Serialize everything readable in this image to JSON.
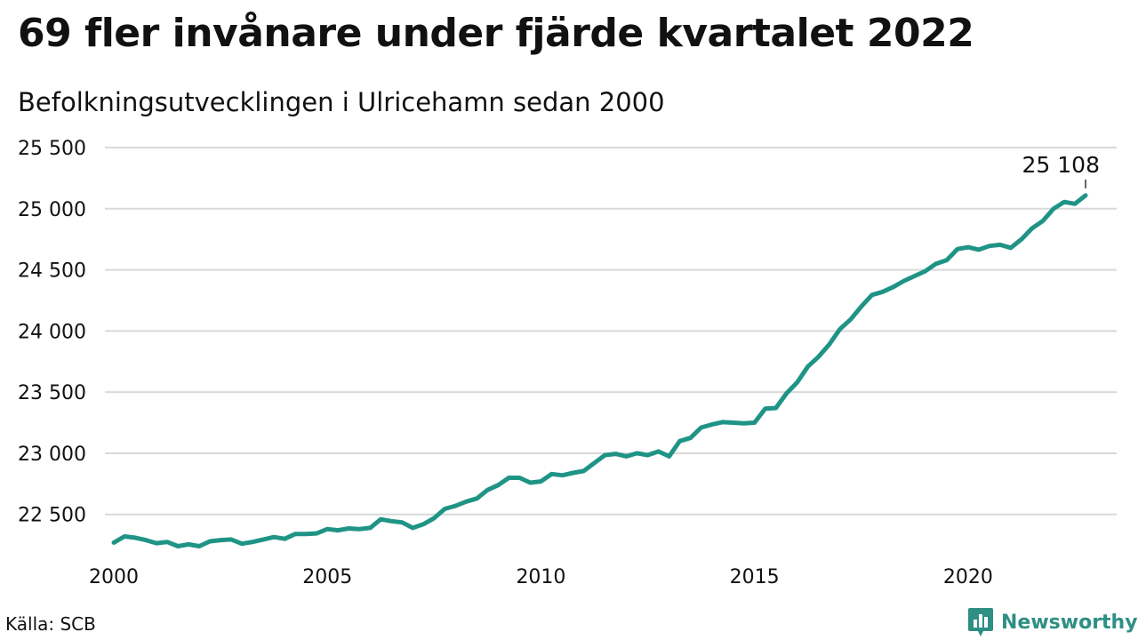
{
  "header": {
    "title": "69 fler invånare under fjärde kvartalet 2022",
    "subtitle": "Befolkningsutvecklingen i Ulricehamn sedan 2000"
  },
  "footer": {
    "source": "Källa: SCB",
    "brand": "Newsworthy",
    "brand_icon": "bar-chart-icon"
  },
  "colors": {
    "line": "#1f9486",
    "grid": "#d9d9d9",
    "brand": "#2e8f84"
  },
  "chart_data": {
    "type": "line",
    "xlabel": "",
    "ylabel": "",
    "xlim": [
      2000,
      2022.75
    ],
    "ylim": [
      22200,
      25500
    ],
    "x_ticks": [
      2000,
      2005,
      2010,
      2015,
      2020
    ],
    "x_tick_labels": [
      "2000",
      "2005",
      "2010",
      "2015",
      "2020"
    ],
    "y_ticks": [
      22500,
      23000,
      23500,
      24000,
      24500,
      25000,
      25500
    ],
    "y_tick_labels": [
      "22 500",
      "23 000",
      "23 500",
      "24 000",
      "24 500",
      "25 000",
      "25 500"
    ],
    "grid": true,
    "annotation": {
      "text": "25 108",
      "x": 2022.75,
      "y": 25108
    },
    "series": [
      {
        "name": "",
        "x": [
          2000,
          2000.25,
          2000.5,
          2000.75,
          2001,
          2001.25,
          2001.5,
          2001.75,
          2002,
          2002.25,
          2002.5,
          2002.75,
          2003,
          2003.25,
          2003.5,
          2003.75,
          2004,
          2004.25,
          2004.5,
          2004.75,
          2005,
          2005.25,
          2005.5,
          2005.75,
          2006,
          2006.25,
          2006.5,
          2006.75,
          2007,
          2007.25,
          2007.5,
          2007.75,
          2008,
          2008.25,
          2008.5,
          2008.75,
          2009,
          2009.25,
          2009.5,
          2009.75,
          2010,
          2010.25,
          2010.5,
          2010.75,
          2011,
          2011.25,
          2011.5,
          2011.75,
          2012,
          2012.25,
          2012.5,
          2012.75,
          2013,
          2013.25,
          2013.5,
          2013.75,
          2014,
          2014.25,
          2014.5,
          2014.75,
          2015,
          2015.25,
          2015.5,
          2015.75,
          2016,
          2016.25,
          2016.5,
          2016.75,
          2017,
          2017.25,
          2017.5,
          2017.75,
          2018,
          2018.25,
          2018.5,
          2018.75,
          2019,
          2019.25,
          2019.5,
          2019.75,
          2020,
          2020.25,
          2020.5,
          2020.75,
          2021,
          2021.25,
          2021.5,
          2021.75,
          2022,
          2022.25,
          2022.5,
          2022.75
        ],
        "values": [
          22270,
          22320,
          22310,
          22290,
          22265,
          22275,
          22240,
          22255,
          22240,
          22280,
          22290,
          22295,
          22260,
          22275,
          22295,
          22315,
          22300,
          22340,
          22340,
          22345,
          22380,
          22370,
          22385,
          22380,
          22390,
          22460,
          22445,
          22435,
          22390,
          22420,
          22470,
          22545,
          22570,
          22605,
          22630,
          22700,
          22740,
          22800,
          22800,
          22760,
          22770,
          22830,
          22820,
          22840,
          22855,
          22920,
          22985,
          22995,
          22975,
          23000,
          22985,
          23015,
          22975,
          23100,
          23125,
          23210,
          23235,
          23255,
          23250,
          23245,
          23250,
          23365,
          23370,
          23490,
          23580,
          23710,
          23790,
          23890,
          24015,
          24095,
          24200,
          24295,
          24320,
          24360,
          24410,
          24450,
          24490,
          24550,
          24580,
          24670,
          24685,
          24665,
          24695,
          24705,
          24680,
          24750,
          24840,
          24900,
          25000,
          25055,
          25040,
          25108
        ]
      }
    ]
  }
}
